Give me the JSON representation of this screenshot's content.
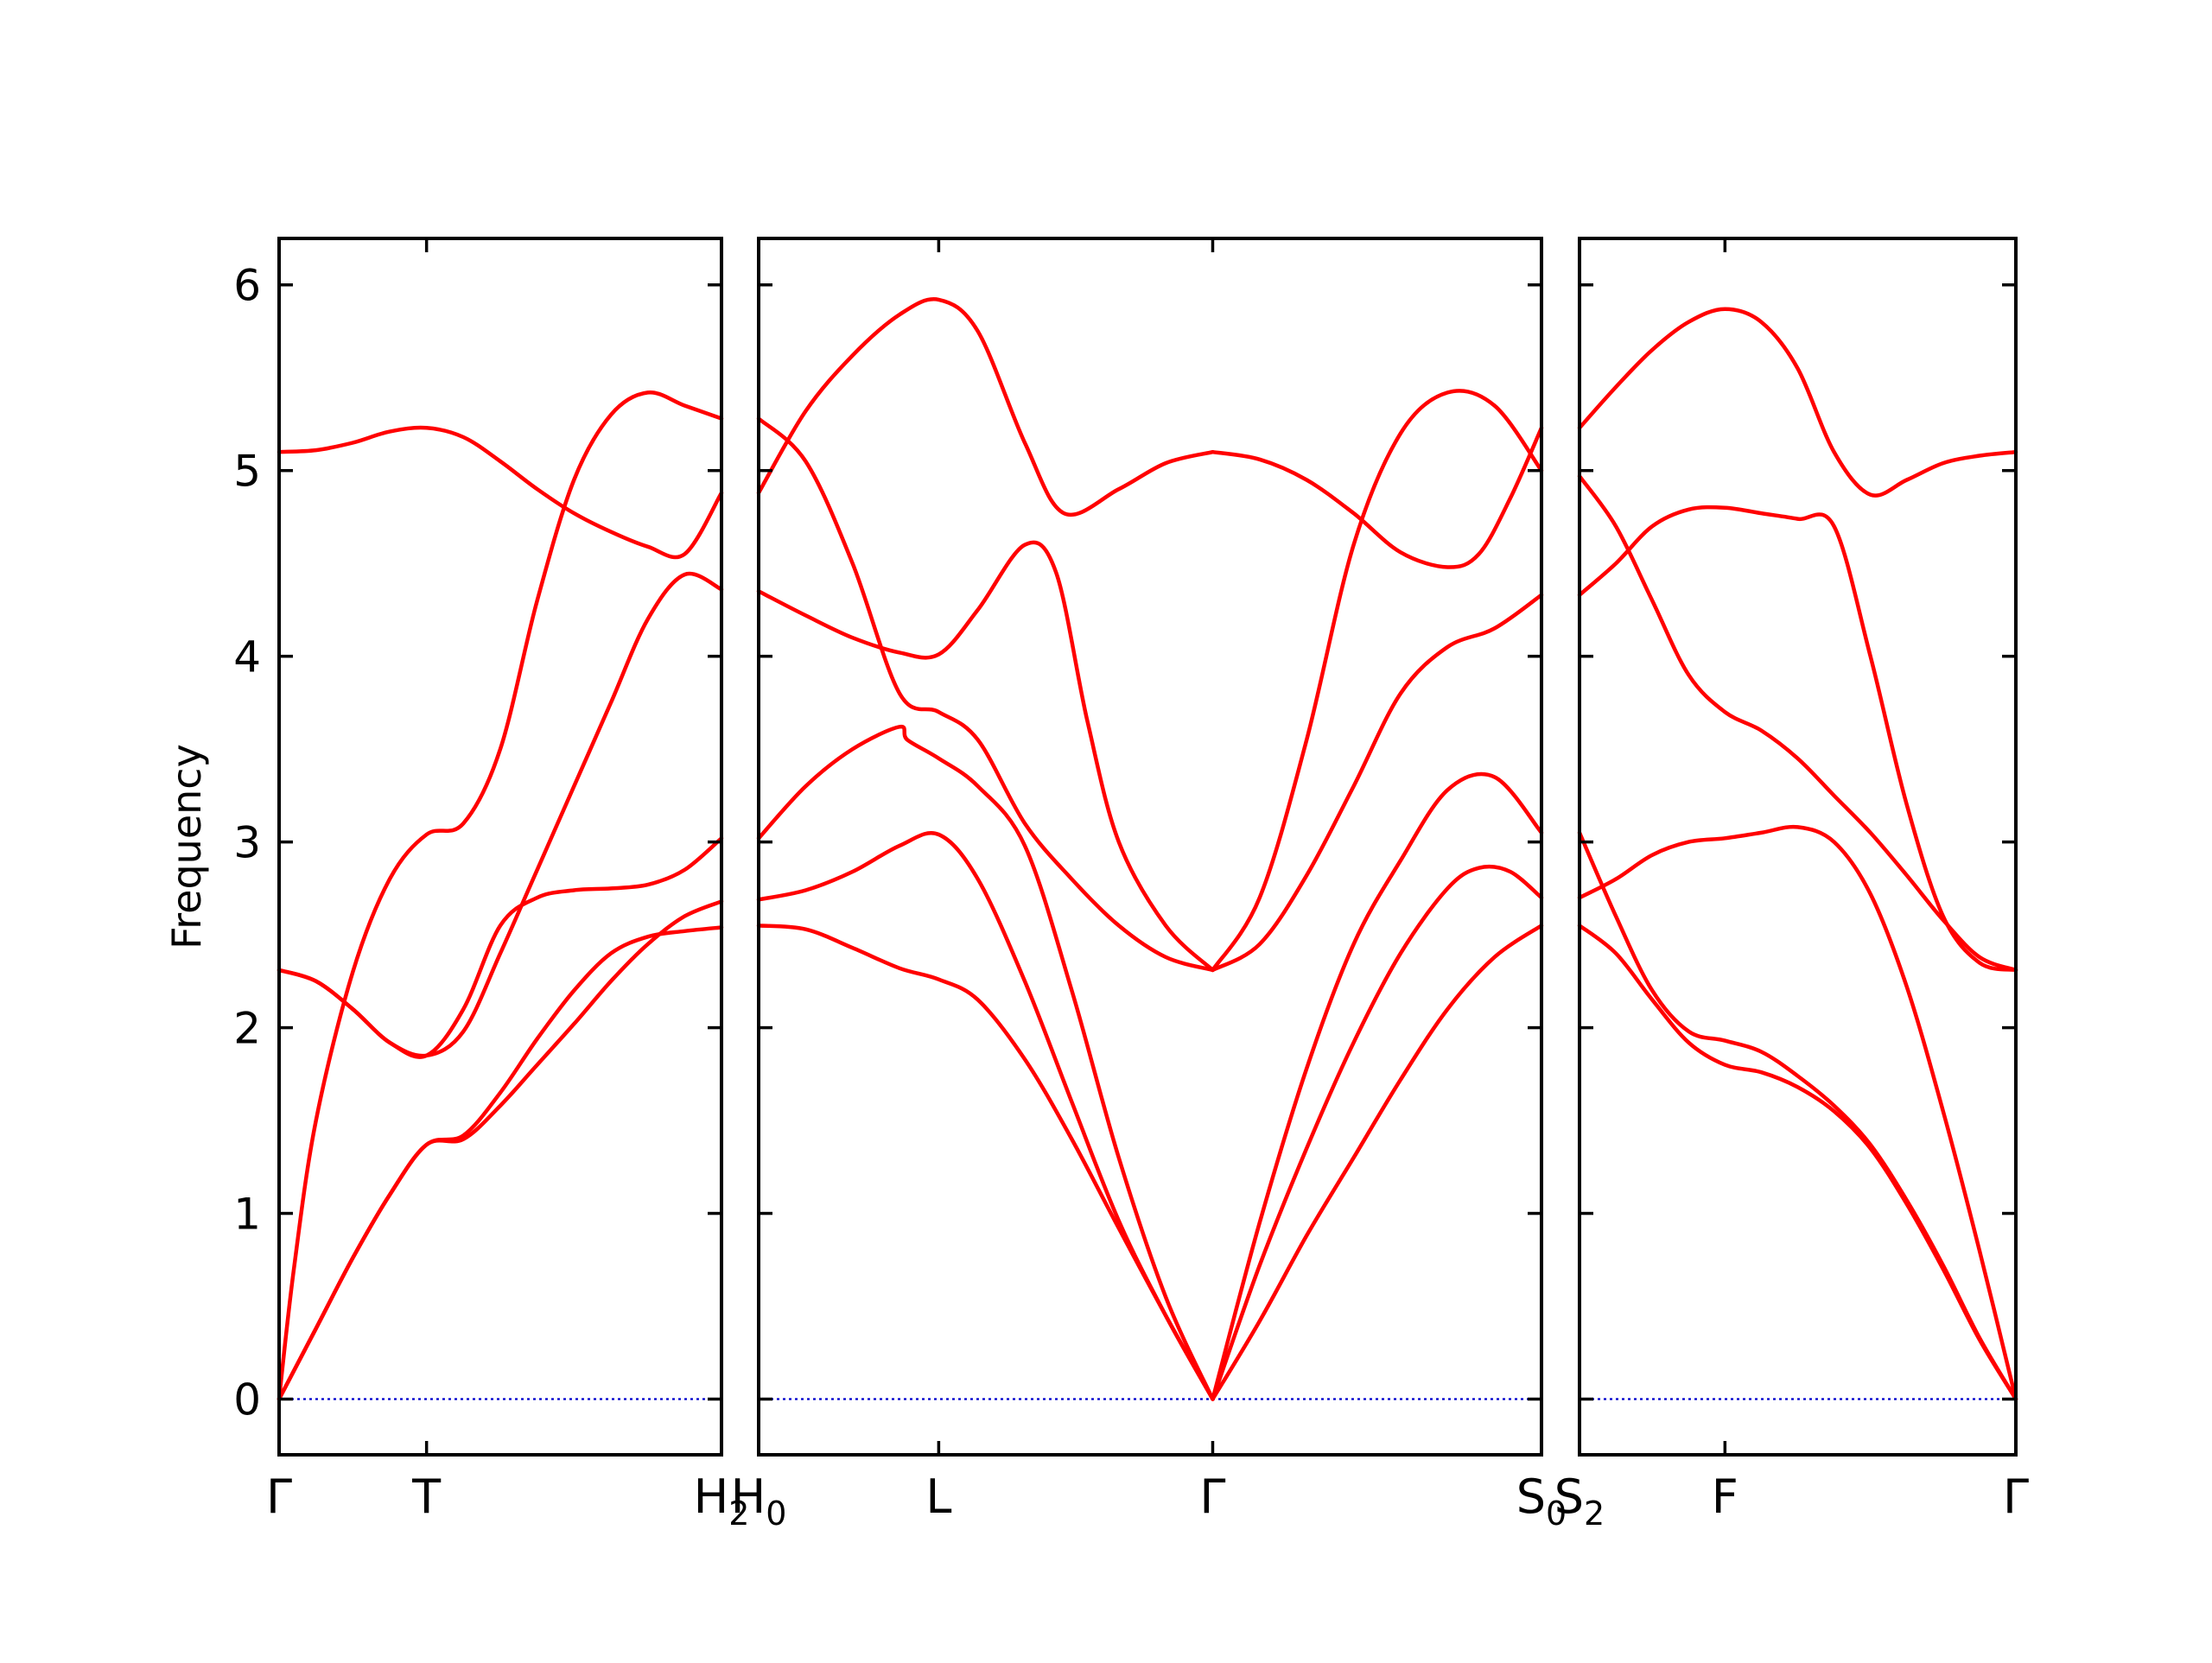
{
  "chart_data": {
    "type": "line",
    "title": "",
    "ylabel": "Frequency",
    "ylim": [
      -0.3,
      6.25
    ],
    "yticks": [
      0,
      1,
      2,
      3,
      4,
      5,
      6
    ],
    "grid": false,
    "legend": "none",
    "colors": {
      "bands": "#ff0000",
      "zero_line": "#0000cc",
      "frame": "#000000"
    },
    "panels": [
      {
        "x_range": [
          0,
          3
        ],
        "labels": [
          {
            "x": 0,
            "text": "Γ",
            "sub": ""
          },
          {
            "x": 1,
            "text": "T",
            "sub": ""
          },
          {
            "x": 3,
            "text": "H",
            "sub": "2"
          }
        ],
        "bands": [
          {
            "x": [
              0,
              0.25,
              0.5,
              0.75,
              1,
              1.25,
              1.5,
              1.75,
              2,
              2.25,
              2.5,
              2.75,
              3
            ],
            "y": [
              0,
              0.38,
              0.76,
              1.1,
              1.37,
              1.4,
              1.58,
              1.8,
              2.02,
              2.25,
              2.45,
              2.6,
              2.68
            ]
          },
          {
            "x": [
              0,
              0.25,
              0.5,
              0.75,
              1,
              1.25,
              1.5,
              1.75,
              2,
              2.25,
              2.5,
              2.75,
              3
            ],
            "y": [
              0,
              0.38,
              0.76,
              1.1,
              1.37,
              1.42,
              1.65,
              1.94,
              2.2,
              2.4,
              2.49,
              2.52,
              2.54
            ]
          },
          {
            "x": [
              0,
              0.1,
              0.25,
              0.5,
              0.75,
              1,
              1.25,
              1.5,
              1.75,
              2,
              2.25,
              2.5,
              2.75,
              3
            ],
            "y": [
              0,
              0.7,
              1.5,
              2.3,
              2.8,
              3.04,
              3.1,
              3.5,
              4.3,
              4.95,
              5.3,
              5.42,
              5.35,
              5.28
            ]
          },
          {
            "x": [
              0,
              0.25,
              0.5,
              0.75,
              1,
              1.25,
              1.5,
              1.75,
              2,
              2.25,
              2.5,
              2.75,
              3
            ],
            "y": [
              2.31,
              2.25,
              2.1,
              1.92,
              1.85,
              1.98,
              2.4,
              2.85,
              3.3,
              3.75,
              4.2,
              4.44,
              4.36
            ]
          },
          {
            "x": [
              0,
              0.25,
              0.5,
              0.75,
              1,
              1.25,
              1.5,
              1.75,
              2,
              2.25,
              2.5,
              2.75,
              3
            ],
            "y": [
              2.31,
              2.25,
              2.1,
              1.92,
              1.85,
              2.1,
              2.55,
              2.7,
              2.74,
              2.75,
              2.77,
              2.85,
              3.02
            ]
          },
          {
            "x": [
              0,
              0.25,
              0.5,
              0.75,
              1,
              1.25,
              1.5,
              1.75,
              2,
              2.25,
              2.5,
              2.75,
              3
            ],
            "y": [
              5.1,
              5.11,
              5.15,
              5.21,
              5.23,
              5.18,
              5.05,
              4.9,
              4.77,
              4.67,
              4.59,
              4.55,
              4.88
            ]
          }
        ]
      },
      {
        "x_range": [
          0,
          5
        ],
        "labels": [
          {
            "x": 0,
            "text": "H",
            "sub": "0"
          },
          {
            "x": 1.15,
            "text": "L",
            "sub": ""
          },
          {
            "x": 2.9,
            "text": "Γ",
            "sub": ""
          },
          {
            "x": 5,
            "text": "S",
            "sub": "0"
          }
        ],
        "bands": [
          {
            "x": [
              0,
              0.3,
              0.6,
              0.9,
              1.15,
              1.4,
              1.7,
              2,
              2.3,
              2.6,
              2.9
            ],
            "y": [
              2.55,
              2.53,
              2.43,
              2.32,
              2.26,
              2.15,
              1.83,
              1.4,
              0.92,
              0.45,
              0
            ]
          },
          {
            "x": [
              0,
              0.3,
              0.6,
              0.9,
              1.15,
              1.4,
              1.7,
              2,
              2.3,
              2.6,
              2.9
            ],
            "y": [
              2.69,
              2.74,
              2.84,
              2.98,
              3.04,
              2.8,
              2.25,
              1.6,
              0.96,
              0.45,
              0
            ]
          },
          {
            "x": [
              0,
              0.3,
              0.6,
              0.9,
              0.95,
              1.15,
              1.4,
              1.7,
              2,
              2.3,
              2.6,
              2.9
            ],
            "y": [
              3.02,
              3.3,
              3.5,
              3.62,
              3.55,
              3.45,
              3.3,
              2.98,
              2.2,
              1.3,
              0.55,
              0
            ]
          },
          {
            "x": [
              0,
              0.3,
              0.6,
              0.9,
              1.15,
              1.4,
              1.7,
              2,
              2.3,
              2.6,
              2.9
            ],
            "y": [
              5.28,
              5.05,
              4.5,
              3.8,
              3.7,
              3.55,
              3.1,
              2.8,
              2.55,
              2.38,
              2.31
            ]
          },
          {
            "x": [
              0,
              0.3,
              0.6,
              0.9,
              1.15,
              1.4,
              1.7,
              1.9,
              2.1,
              2.3,
              2.6,
              2.9
            ],
            "y": [
              4.35,
              4.22,
              4.1,
              4.02,
              4.01,
              4.25,
              4.6,
              4.45,
              3.65,
              3.0,
              2.55,
              2.31
            ]
          },
          {
            "x": [
              0,
              0.3,
              0.6,
              0.9,
              1.15,
              1.4,
              1.7,
              1.95,
              2.3,
              2.6,
              2.9
            ],
            "y": [
              4.88,
              5.32,
              5.62,
              5.84,
              5.92,
              5.75,
              5.15,
              4.77,
              4.9,
              5.04,
              5.1
            ]
          },
          {
            "x": [
              2.9,
              3.2,
              3.5,
              3.8,
              4.1,
              4.4,
              4.7,
              5
            ],
            "y": [
              0,
              0.42,
              0.88,
              1.3,
              1.72,
              2.1,
              2.38,
              2.55
            ]
          },
          {
            "x": [
              2.9,
              3.2,
              3.5,
              3.8,
              4.1,
              4.4,
              4.6,
              4.8,
              5
            ],
            "y": [
              0,
              0.72,
              1.35,
              1.92,
              2.4,
              2.75,
              2.86,
              2.84,
              2.7
            ]
          },
          {
            "x": [
              2.9,
              3.2,
              3.5,
              3.8,
              4.1,
              4.4,
              4.7,
              5
            ],
            "y": [
              0,
              0.95,
              1.78,
              2.45,
              2.9,
              3.28,
              3.35,
              3.05
            ]
          },
          {
            "x": [
              2.9,
              3.2,
              3.5,
              3.8,
              4.1,
              4.4,
              4.7,
              5
            ],
            "y": [
              2.31,
              2.45,
              2.82,
              3.3,
              3.8,
              4.05,
              4.15,
              4.33
            ]
          },
          {
            "x": [
              2.9,
              3.2,
              3.5,
              3.8,
              4.1,
              4.4,
              4.7,
              5
            ],
            "y": [
              2.31,
              2.7,
              3.55,
              4.6,
              5.2,
              5.42,
              5.35,
              5.0
            ]
          },
          {
            "x": [
              2.9,
              3.2,
              3.5,
              3.8,
              4.1,
              4.4,
              4.6,
              4.8,
              5
            ],
            "y": [
              5.1,
              5.06,
              4.95,
              4.77,
              4.56,
              4.48,
              4.55,
              4.85,
              5.23
            ]
          }
        ]
      },
      {
        "x_range": [
          0,
          3
        ],
        "labels": [
          {
            "x": 0,
            "text": "S",
            "sub": "2"
          },
          {
            "x": 1,
            "text": "F",
            "sub": ""
          },
          {
            "x": 3,
            "text": "Γ",
            "sub": ""
          }
        ],
        "bands": [
          {
            "x": [
              0,
              0.25,
              0.5,
              0.75,
              1,
              1.25,
              1.5,
              1.75,
              2,
              2.25,
              2.5,
              2.75,
              3
            ],
            "y": [
              2.55,
              2.4,
              2.15,
              1.92,
              1.8,
              1.76,
              1.68,
              1.55,
              1.35,
              1.05,
              0.7,
              0.32,
              0
            ]
          },
          {
            "x": [
              0,
              0.25,
              0.5,
              0.75,
              1,
              1.25,
              1.5,
              1.75,
              2,
              2.25,
              2.5,
              2.75,
              3
            ],
            "y": [
              3.05,
              2.6,
              2.2,
              1.98,
              1.93,
              1.87,
              1.74,
              1.58,
              1.37,
              1.07,
              0.72,
              0.33,
              0
            ]
          },
          {
            "x": [
              0,
              0.25,
              0.5,
              0.75,
              1,
              1.25,
              1.5,
              1.75,
              2,
              2.25,
              2.5,
              2.75,
              3
            ],
            "y": [
              2.7,
              2.8,
              2.93,
              3.0,
              3.02,
              3.05,
              3.08,
              3.0,
              2.72,
              2.22,
              1.55,
              0.8,
              0
            ]
          },
          {
            "x": [
              0,
              0.25,
              0.5,
              0.75,
              1,
              1.25,
              1.5,
              1.75,
              2,
              2.25,
              2.5,
              2.75,
              3
            ],
            "y": [
              4.97,
              4.7,
              4.3,
              3.9,
              3.7,
              3.6,
              3.45,
              3.25,
              3.05,
              2.82,
              2.58,
              2.38,
              2.31
            ]
          },
          {
            "x": [
              0,
              0.25,
              0.5,
              0.75,
              1,
              1.25,
              1.5,
              1.75,
              2,
              2.25,
              2.5,
              2.75,
              3
            ],
            "y": [
              4.33,
              4.5,
              4.7,
              4.79,
              4.8,
              4.77,
              4.74,
              4.7,
              4.0,
              3.2,
              2.6,
              2.35,
              2.31
            ]
          },
          {
            "x": [
              0,
              0.25,
              0.5,
              0.75,
              1,
              1.25,
              1.5,
              1.75,
              2,
              2.25,
              2.5,
              2.75,
              3
            ],
            "y": [
              5.23,
              5.45,
              5.65,
              5.8,
              5.87,
              5.8,
              5.55,
              5.1,
              4.87,
              4.95,
              5.04,
              5.08,
              5.1
            ]
          }
        ]
      }
    ]
  }
}
